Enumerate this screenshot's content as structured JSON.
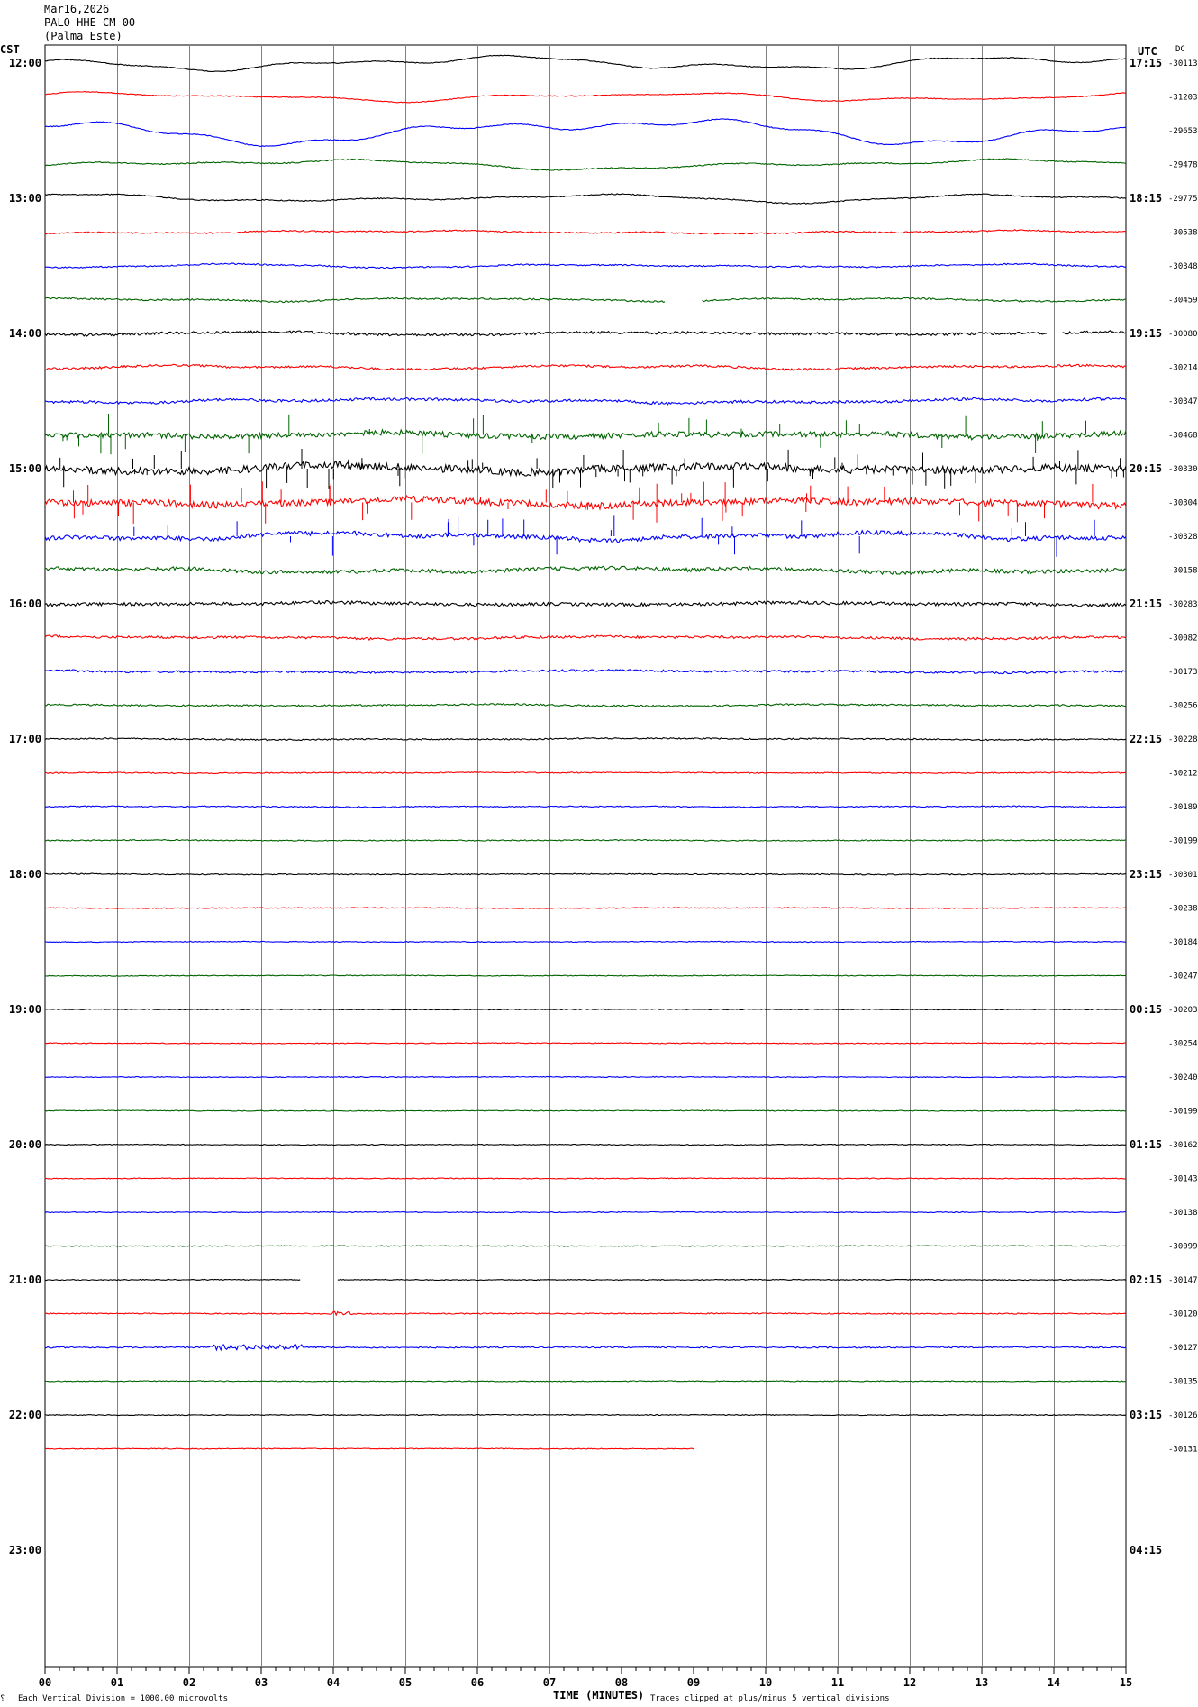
{
  "header": {
    "date": "Mar16,2026",
    "station": "PALO HHE CM 00",
    "location": "(Palma Este)",
    "left_tz": "CST",
    "right_tz": "UTC",
    "dc_label": "DC"
  },
  "footer": {
    "scale_note": "Each Vertical Division = 1000.00 microvolts",
    "xaxis_title": "TIME (MINUTES)",
    "clip_note": "Traces clipped at plus/minus 5 vertical divisions"
  },
  "colors": {
    "black": "#000000",
    "red": "#ff0000",
    "blue": "#0000ff",
    "green": "#006400",
    "grid": "#808080"
  },
  "chart_data": {
    "type": "line",
    "x_range": [
      0,
      15
    ],
    "x_ticks": [
      "00",
      "01",
      "02",
      "03",
      "04",
      "05",
      "06",
      "07",
      "08",
      "09",
      "10",
      "11",
      "12",
      "13",
      "14",
      "15"
    ],
    "rows_per_hour": 4,
    "row_minutes": 15,
    "hour_labels_local": [
      "12:00",
      "13:00",
      "14:00",
      "15:00",
      "16:00",
      "17:00",
      "18:00",
      "19:00",
      "20:00",
      "21:00",
      "22:00",
      "23:00"
    ],
    "hour_labels_utc": [
      "17:15",
      "18:15",
      "19:15",
      "20:15",
      "21:15",
      "22:15",
      "23:15",
      "00:15",
      "01:15",
      "02:15",
      "03:15",
      "04:15"
    ],
    "traces": [
      {
        "color": "black",
        "dc": "-30113",
        "amp": 1.6,
        "wave": 3.0,
        "noise": 0.15,
        "spikes": 0,
        "end": 15
      },
      {
        "color": "red",
        "dc": "-31203",
        "amp": 1.4,
        "wave": 2.2,
        "noise": 0.15,
        "spikes": 0,
        "end": 15
      },
      {
        "color": "blue",
        "dc": "-29653",
        "amp": 2.6,
        "wave": 3.4,
        "noise": 0.15,
        "spikes": 0,
        "end": 15
      },
      {
        "color": "green",
        "dc": "-29478",
        "amp": 1.6,
        "wave": 2.2,
        "noise": 0.2,
        "spikes": 0,
        "end": 15
      },
      {
        "color": "black",
        "dc": "-29775",
        "amp": 1.6,
        "wave": 1.8,
        "noise": 0.2,
        "spikes": 0,
        "end": 15
      },
      {
        "color": "red",
        "dc": "-30538",
        "amp": 0.9,
        "wave": 1.2,
        "noise": 0.25,
        "spikes": 0,
        "end": 15
      },
      {
        "color": "blue",
        "dc": "-30348",
        "amp": 1.0,
        "wave": 1.2,
        "noise": 0.25,
        "spikes": 0,
        "end": 15
      },
      {
        "color": "green",
        "dc": "-30459",
        "amp": 1.0,
        "wave": 1.2,
        "noise": 0.3,
        "spikes": 0,
        "end": 15,
        "gap": [
          8.6,
          9.1
        ]
      },
      {
        "color": "black",
        "dc": "-30080",
        "amp": 1.0,
        "wave": 1.0,
        "noise": 0.5,
        "spikes": 0,
        "end": 15,
        "gap": [
          13.9,
          14.1
        ]
      },
      {
        "color": "red",
        "dc": "-30214",
        "amp": 1.2,
        "wave": 1.2,
        "noise": 0.4,
        "spikes": 0,
        "end": 15
      },
      {
        "color": "blue",
        "dc": "-30347",
        "amp": 1.2,
        "wave": 1.2,
        "noise": 0.5,
        "spikes": 0,
        "end": 15
      },
      {
        "color": "green",
        "dc": "-30468",
        "amp": 1.2,
        "wave": 1.2,
        "noise": 1.0,
        "spikes": 30,
        "end": 15
      },
      {
        "color": "black",
        "dc": "-30330",
        "amp": 1.4,
        "wave": 1.5,
        "noise": 1.4,
        "spikes": 60,
        "end": 15
      },
      {
        "color": "red",
        "dc": "-30304",
        "amp": 1.4,
        "wave": 1.5,
        "noise": 1.2,
        "spikes": 45,
        "end": 15
      },
      {
        "color": "blue",
        "dc": "-30328",
        "amp": 1.6,
        "wave": 1.6,
        "noise": 0.8,
        "spikes": 25,
        "end": 15
      },
      {
        "color": "green",
        "dc": "-30158",
        "amp": 1.2,
        "wave": 1.4,
        "noise": 0.7,
        "spikes": 0,
        "end": 15
      },
      {
        "color": "black",
        "dc": "-30283",
        "amp": 0.9,
        "wave": 1.0,
        "noise": 0.6,
        "spikes": 0,
        "end": 15
      },
      {
        "color": "red",
        "dc": "-30082",
        "amp": 0.9,
        "wave": 1.0,
        "noise": 0.45,
        "spikes": 0,
        "end": 15
      },
      {
        "color": "blue",
        "dc": "-30173",
        "amp": 0.8,
        "wave": 1.0,
        "noise": 0.4,
        "spikes": 0,
        "end": 15
      },
      {
        "color": "green",
        "dc": "-30256",
        "amp": 0.6,
        "wave": 1.0,
        "noise": 0.3,
        "spikes": 0,
        "end": 15
      },
      {
        "color": "black",
        "dc": "-30228",
        "amp": 0.5,
        "wave": 1.0,
        "noise": 0.25,
        "spikes": 0,
        "end": 15
      },
      {
        "color": "red",
        "dc": "-30212",
        "amp": 0.25,
        "wave": 1.0,
        "noise": 0.2,
        "spikes": 0,
        "end": 15
      },
      {
        "color": "blue",
        "dc": "-30189",
        "amp": 0.25,
        "wave": 1.0,
        "noise": 0.2,
        "spikes": 0,
        "end": 15
      },
      {
        "color": "green",
        "dc": "-30199",
        "amp": 0.2,
        "wave": 1.0,
        "noise": 0.2,
        "spikes": 0,
        "end": 15
      },
      {
        "color": "black",
        "dc": "-30301",
        "amp": 0.2,
        "wave": 1.0,
        "noise": 0.2,
        "spikes": 0,
        "end": 15
      },
      {
        "color": "red",
        "dc": "-30238",
        "amp": 0.2,
        "wave": 1.0,
        "noise": 0.15,
        "spikes": 0,
        "end": 15
      },
      {
        "color": "blue",
        "dc": "-30184",
        "amp": 0.15,
        "wave": 1.0,
        "noise": 0.15,
        "spikes": 0,
        "end": 15
      },
      {
        "color": "green",
        "dc": "-30247",
        "amp": 0.15,
        "wave": 1.0,
        "noise": 0.15,
        "spikes": 0,
        "end": 15
      },
      {
        "color": "black",
        "dc": "-30203",
        "amp": 0.12,
        "wave": 1.0,
        "noise": 0.15,
        "spikes": 0,
        "end": 15
      },
      {
        "color": "red",
        "dc": "-30254",
        "amp": 0.12,
        "wave": 1.0,
        "noise": 0.15,
        "spikes": 0,
        "end": 15
      },
      {
        "color": "blue",
        "dc": "-30240",
        "amp": 0.12,
        "wave": 1.0,
        "noise": 0.15,
        "spikes": 0,
        "end": 15
      },
      {
        "color": "green",
        "dc": "-30199",
        "amp": 0.12,
        "wave": 1.0,
        "noise": 0.15,
        "spikes": 0,
        "end": 15
      },
      {
        "color": "black",
        "dc": "-30162",
        "amp": 0.1,
        "wave": 1.0,
        "noise": 0.15,
        "spikes": 0,
        "end": 15
      },
      {
        "color": "red",
        "dc": "-30143",
        "amp": 0.1,
        "wave": 1.0,
        "noise": 0.15,
        "spikes": 0,
        "end": 15
      },
      {
        "color": "blue",
        "dc": "-30138",
        "amp": 0.1,
        "wave": 1.0,
        "noise": 0.15,
        "spikes": 0,
        "end": 15
      },
      {
        "color": "green",
        "dc": "-30099",
        "amp": 0.1,
        "wave": 1.0,
        "noise": 0.15,
        "spikes": 0,
        "end": 15
      },
      {
        "color": "black",
        "dc": "-30147",
        "amp": 0.1,
        "wave": 1.0,
        "noise": 0.15,
        "spikes": 0,
        "end": 15,
        "gap": [
          3.55,
          4.05
        ]
      },
      {
        "color": "red",
        "dc": "-30120",
        "amp": 0.1,
        "wave": 1.0,
        "noise": 0.2,
        "spikes": 0,
        "end": 15,
        "burst": [
          4.0,
          4.3
        ]
      },
      {
        "color": "blue",
        "dc": "-30127",
        "amp": 0.1,
        "wave": 1.0,
        "noise": 0.25,
        "spikes": 0,
        "end": 15,
        "burst": [
          2.3,
          3.6
        ]
      },
      {
        "color": "green",
        "dc": "-30135",
        "amp": 0.1,
        "wave": 1.0,
        "noise": 0.15,
        "spikes": 0,
        "end": 15
      },
      {
        "color": "black",
        "dc": "-30126",
        "amp": 0.1,
        "wave": 1.0,
        "noise": 0.15,
        "spikes": 0,
        "end": 15
      },
      {
        "color": "red",
        "dc": "-30131",
        "amp": 0.1,
        "wave": 1.0,
        "noise": 0.15,
        "spikes": 0,
        "end": 9.0
      }
    ]
  }
}
